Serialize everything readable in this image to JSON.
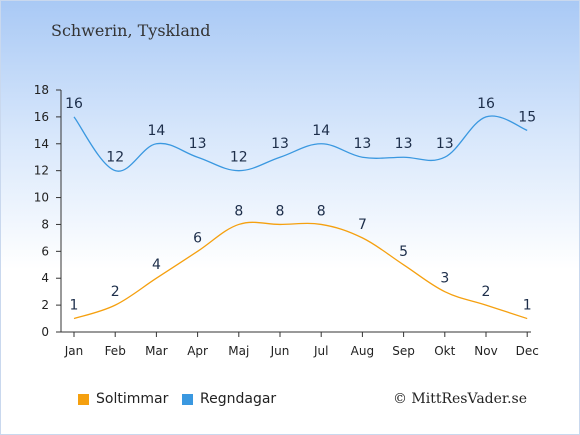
{
  "chart_data": {
    "type": "line",
    "title": "Schwerin, Tyskland",
    "categories": [
      "Jan",
      "Feb",
      "Mar",
      "Apr",
      "Maj",
      "Jun",
      "Jul",
      "Aug",
      "Sep",
      "Okt",
      "Nov",
      "Dec"
    ],
    "ylim": [
      0,
      18
    ],
    "yticks": [
      0,
      2,
      4,
      6,
      8,
      10,
      12,
      14,
      16,
      18
    ],
    "series": [
      {
        "name": "Soltimmar",
        "color": "#f5a00f",
        "values": [
          1,
          2,
          4,
          6,
          8,
          8,
          8,
          7,
          5,
          3,
          2,
          1
        ]
      },
      {
        "name": "Regndagar",
        "color": "#3a98e0",
        "values": [
          16,
          12,
          14,
          13,
          12,
          13,
          14,
          13,
          13,
          13,
          16,
          15
        ]
      }
    ],
    "legend_position": "bottom-left",
    "grid": false
  },
  "copyright": "© MittResVader.se"
}
